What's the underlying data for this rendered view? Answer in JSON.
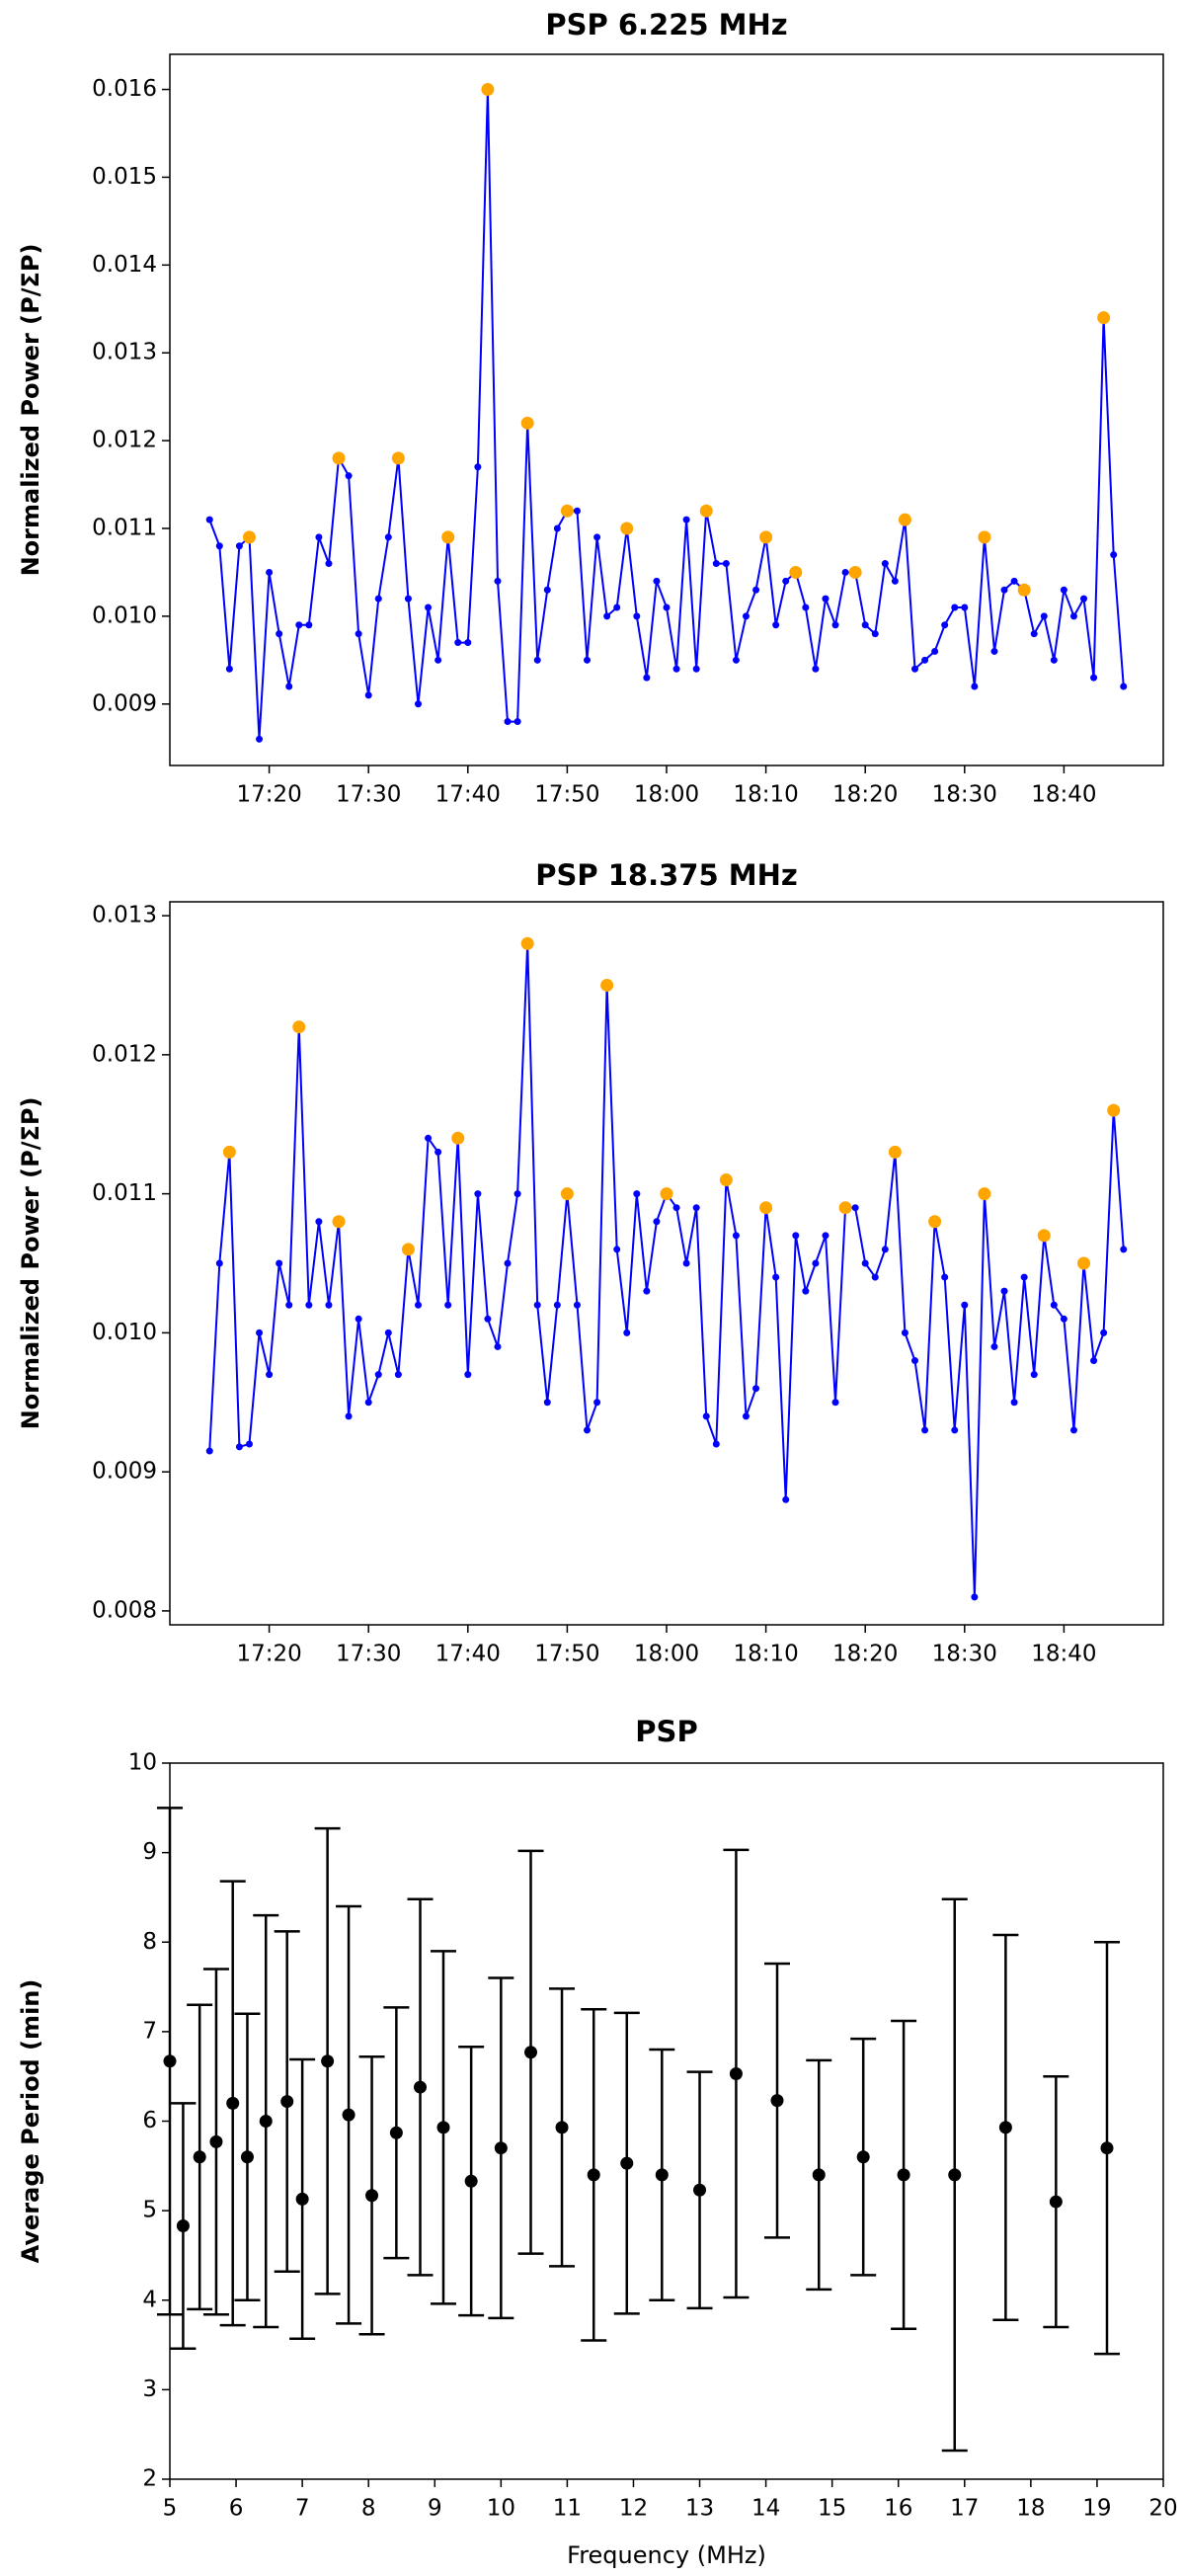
{
  "chart_data": [
    {
      "type": "line",
      "title": "PSP 6.225 MHz",
      "ylabel": "Normalized Power (P/ΣP)",
      "x": [
        "17:14",
        "17:15",
        "17:16",
        "17:17",
        "17:18",
        "17:19",
        "17:20",
        "17:21",
        "17:22",
        "17:23",
        "17:24",
        "17:25",
        "17:26",
        "17:27",
        "17:28",
        "17:29",
        "17:30",
        "17:31",
        "17:32",
        "17:33",
        "17:34",
        "17:35",
        "17:36",
        "17:37",
        "17:38",
        "17:39",
        "17:40",
        "17:41",
        "17:42",
        "17:43",
        "17:44",
        "17:45",
        "17:46",
        "17:47",
        "17:48",
        "17:49",
        "17:50",
        "17:51",
        "17:52",
        "17:53",
        "17:54",
        "17:55",
        "17:56",
        "17:57",
        "17:58",
        "17:59",
        "18:00",
        "18:01",
        "18:02",
        "18:03",
        "18:04",
        "18:05",
        "18:06",
        "18:07",
        "18:08",
        "18:09",
        "18:10",
        "18:11",
        "18:12",
        "18:13",
        "18:14",
        "18:15",
        "18:16",
        "18:17",
        "18:18",
        "18:19",
        "18:20",
        "18:21",
        "18:22",
        "18:23",
        "18:24",
        "18:25",
        "18:26",
        "18:27",
        "18:28",
        "18:29",
        "18:30",
        "18:31",
        "18:32",
        "18:33",
        "18:34",
        "18:35",
        "18:36",
        "18:37",
        "18:38",
        "18:39",
        "18:40",
        "18:41",
        "18:42",
        "18:43",
        "18:44",
        "18:45",
        "18:46"
      ],
      "series": [
        {
          "color": "#0000ff",
          "marker": "dot",
          "values": [
            0.0111,
            0.0108,
            0.0094,
            0.0108,
            0.0109,
            0.0086,
            0.0105,
            0.0098,
            0.0092,
            0.0099,
            0.0099,
            0.0109,
            0.0106,
            0.0118,
            0.0116,
            0.0098,
            0.0091,
            0.0102,
            0.0109,
            0.0118,
            0.0102,
            0.009,
            0.0101,
            0.0095,
            0.0109,
            0.0097,
            0.0097,
            0.0117,
            0.016,
            0.0104,
            0.0088,
            0.0088,
            0.0122,
            0.0095,
            0.0103,
            0.011,
            0.0112,
            0.0112,
            0.0095,
            0.0109,
            0.01,
            0.0101,
            0.011,
            0.01,
            0.0093,
            0.0104,
            0.0101,
            0.0094,
            0.0111,
            0.0094,
            0.0112,
            0.0106,
            0.0106,
            0.0095,
            0.01,
            0.0103,
            0.0109,
            0.0099,
            0.0104,
            0.0105,
            0.0101,
            0.0094,
            0.0102,
            0.0099,
            0.0105,
            0.0105,
            0.0099,
            0.0098,
            0.0106,
            0.0104,
            0.0111,
            0.0094,
            0.0095,
            0.0096,
            0.0099,
            0.0101,
            0.0101,
            0.0092,
            0.0109,
            0.0096,
            0.0103,
            0.0104,
            0.0103,
            0.0098,
            0.01,
            0.0095,
            0.0103,
            0.01,
            0.0102,
            0.0093,
            0.0134,
            0.0107,
            0.0092
          ]
        },
        {
          "color": "#ffa500",
          "marker": "circle",
          "line": false,
          "x": [
            "17:18",
            "17:27",
            "17:33",
            "17:38",
            "17:42",
            "17:46",
            "17:50",
            "17:56",
            "18:04",
            "18:10",
            "18:13",
            "18:19",
            "18:24",
            "18:32",
            "18:36",
            "18:44"
          ],
          "values": [
            0.0109,
            0.0118,
            0.0118,
            0.0109,
            0.016,
            0.0122,
            0.0112,
            0.011,
            0.0112,
            0.0109,
            0.0105,
            0.0105,
            0.0111,
            0.0109,
            0.0103,
            0.0134
          ]
        }
      ],
      "xlim": [
        "17:10",
        "18:50"
      ],
      "xticks": [
        "17:20",
        "17:30",
        "17:40",
        "17:50",
        "18:00",
        "18:10",
        "18:20",
        "18:30",
        "18:40"
      ],
      "ylim": [
        0.0083,
        0.0164
      ],
      "yticks": [
        0.009,
        {
          "value": 0.01,
          "label": "0.010"
        },
        0.011,
        0.012,
        0.013,
        0.014,
        0.015,
        0.016
      ]
    },
    {
      "type": "line",
      "title": "PSP 18.375 MHz",
      "ylabel": "Normalized Power (P/ΣP)",
      "x": [
        "17:14",
        "17:15",
        "17:16",
        "17:17",
        "17:18",
        "17:19",
        "17:20",
        "17:21",
        "17:22",
        "17:23",
        "17:24",
        "17:25",
        "17:26",
        "17:27",
        "17:28",
        "17:29",
        "17:30",
        "17:31",
        "17:32",
        "17:33",
        "17:34",
        "17:35",
        "17:36",
        "17:37",
        "17:38",
        "17:39",
        "17:40",
        "17:41",
        "17:42",
        "17:43",
        "17:44",
        "17:45",
        "17:46",
        "17:47",
        "17:48",
        "17:49",
        "17:50",
        "17:51",
        "17:52",
        "17:53",
        "17:54",
        "17:55",
        "17:56",
        "17:57",
        "17:58",
        "17:59",
        "18:00",
        "18:01",
        "18:02",
        "18:03",
        "18:04",
        "18:05",
        "18:06",
        "18:07",
        "18:08",
        "18:09",
        "18:10",
        "18:11",
        "18:12",
        "18:13",
        "18:14",
        "18:15",
        "18:16",
        "18:17",
        "18:18",
        "18:19",
        "18:20",
        "18:21",
        "18:22",
        "18:23",
        "18:24",
        "18:25",
        "18:26",
        "18:27",
        "18:28",
        "18:29",
        "18:30",
        "18:31",
        "18:32",
        "18:33",
        "18:34",
        "18:35",
        "18:36",
        "18:37",
        "18:38",
        "18:39",
        "18:40",
        "18:41",
        "18:42",
        "18:43",
        "18:44",
        "18:45",
        "18:46"
      ],
      "series": [
        {
          "color": "#0000ff",
          "marker": "dot",
          "values": [
            0.00915,
            0.0105,
            0.0113,
            0.00918,
            0.0092,
            0.01,
            0.0097,
            0.0105,
            0.0102,
            0.0122,
            0.0102,
            0.0108,
            0.0102,
            0.0108,
            0.0094,
            0.0101,
            0.0095,
            0.0097,
            0.01,
            0.0097,
            0.0106,
            0.0102,
            0.0114,
            0.0113,
            0.0102,
            0.0114,
            0.0097,
            0.011,
            0.0101,
            0.0099,
            0.0105,
            0.011,
            0.0128,
            0.0102,
            0.0095,
            0.0102,
            0.011,
            0.0102,
            0.0093,
            0.0095,
            0.0125,
            0.0106,
            0.01,
            0.011,
            0.0103,
            0.0108,
            0.011,
            0.0109,
            0.0105,
            0.0109,
            0.0094,
            0.0092,
            0.0111,
            0.0107,
            0.0094,
            0.0096,
            0.0109,
            0.0104,
            0.0088,
            0.0107,
            0.0103,
            0.0105,
            0.0107,
            0.0095,
            0.0109,
            0.0109,
            0.0105,
            0.0104,
            0.0106,
            0.0113,
            0.01,
            0.0098,
            0.0093,
            0.0108,
            0.0104,
            0.0093,
            0.0102,
            0.0081,
            0.011,
            0.0099,
            0.0103,
            0.0095,
            0.0104,
            0.0097,
            0.0107,
            0.0102,
            0.0101,
            0.0093,
            0.0105,
            0.0098,
            0.01,
            0.0116,
            0.0106
          ]
        },
        {
          "color": "#ffa500",
          "marker": "circle",
          "line": false,
          "x": [
            "17:16",
            "17:23",
            "17:27",
            "17:34",
            "17:39",
            "17:46",
            "17:50",
            "17:54",
            "18:00",
            "18:06",
            "18:10",
            "18:18",
            "18:23",
            "18:27",
            "18:32",
            "18:38",
            "18:42",
            "18:45"
          ],
          "values": [
            0.0113,
            0.0122,
            0.0108,
            0.0106,
            0.0114,
            0.0128,
            0.011,
            0.0125,
            0.011,
            0.0111,
            0.0109,
            0.0109,
            0.0113,
            0.0108,
            0.011,
            0.0107,
            0.0105,
            0.0116
          ]
        }
      ],
      "xlim": [
        "17:10",
        "18:50"
      ],
      "xticks": [
        "17:20",
        "17:30",
        "17:40",
        "17:50",
        "18:00",
        "18:10",
        "18:20",
        "18:30",
        "18:40"
      ],
      "ylim": [
        0.0079,
        0.0131
      ],
      "yticks": [
        0.008,
        0.009,
        {
          "value": 0.01,
          "label": "0.010"
        },
        0.011,
        0.012,
        0.013
      ]
    },
    {
      "type": "errorbar",
      "title": "PSP",
      "xlabel": "Frequency (MHz)",
      "ylabel": "Average Period (min)",
      "color": "#000000",
      "x": [
        5.0,
        5.2,
        5.45,
        5.7,
        5.95,
        6.17,
        6.45,
        6.77,
        7.0,
        7.38,
        7.7,
        8.05,
        8.42,
        8.78,
        9.13,
        9.55,
        10.0,
        10.45,
        10.92,
        11.4,
        11.9,
        12.43,
        13.0,
        13.55,
        14.17,
        14.8,
        15.47,
        16.08,
        16.85,
        17.62,
        18.38,
        19.15
      ],
      "values": [
        6.67,
        4.83,
        5.6,
        5.77,
        6.2,
        5.6,
        6.0,
        6.22,
        5.13,
        6.67,
        6.07,
        5.17,
        5.87,
        6.38,
        5.93,
        5.33,
        5.7,
        6.77,
        5.93,
        5.4,
        5.53,
        5.4,
        5.23,
        6.53,
        6.23,
        5.4,
        5.6,
        5.4,
        5.4,
        5.93,
        5.1,
        5.7
      ],
      "errors": [
        2.83,
        1.37,
        1.7,
        1.93,
        2.48,
        1.6,
        2.3,
        1.9,
        1.56,
        2.6,
        2.33,
        1.55,
        1.4,
        2.1,
        1.97,
        1.5,
        1.9,
        2.25,
        1.55,
        1.85,
        1.68,
        1.4,
        1.32,
        2.5,
        1.53,
        1.28,
        1.32,
        1.72,
        3.08,
        2.15,
        1.4,
        2.3
      ],
      "xlim": [
        5,
        20
      ],
      "xticks": [
        5,
        6,
        7,
        8,
        9,
        10,
        11,
        12,
        13,
        14,
        15,
        16,
        17,
        18,
        19,
        20
      ],
      "ylim": [
        2,
        10
      ],
      "yticks": [
        2,
        3,
        4,
        5,
        6,
        7,
        8,
        9,
        10
      ]
    }
  ]
}
